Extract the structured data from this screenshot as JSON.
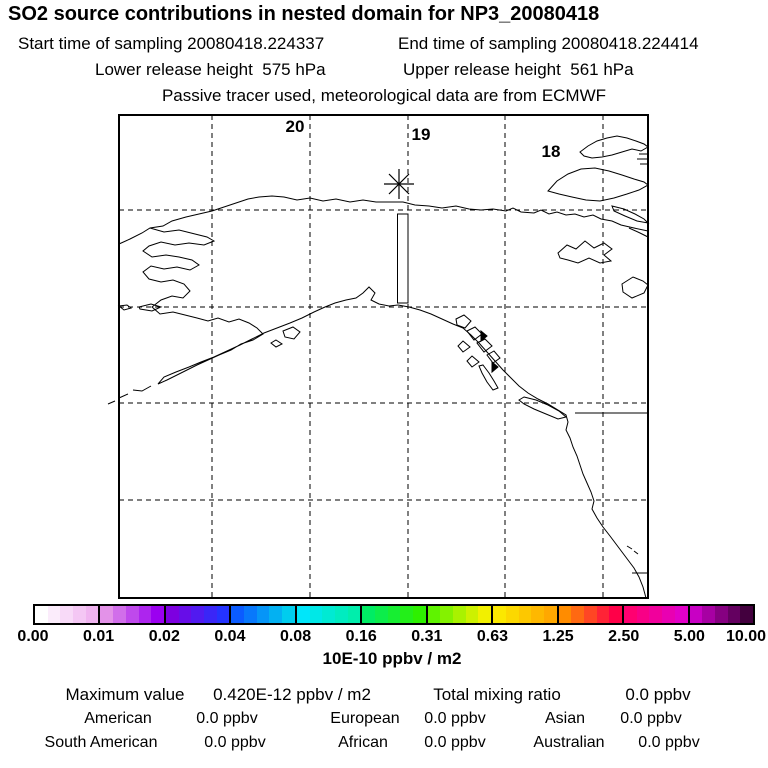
{
  "header": {
    "title": "SO2 source contributions in nested domain for NP3_20080418",
    "start_time": "Start time of sampling 20080418.224337",
    "end_time": "End time of sampling 20080418.224414",
    "lower_release": "Lower release height  575 hPa",
    "upper_release": "Upper release height  561 hPa",
    "tracer_note": "Passive tracer used, meteorological data are from ECMWF"
  },
  "map": {
    "day_labels": [
      "20",
      "19",
      "18"
    ]
  },
  "colorbar": {
    "ticks": [
      "0.00",
      "0.01",
      "0.02",
      "0.04",
      "0.08",
      "0.16",
      "0.31",
      "0.63",
      "1.25",
      "2.50",
      "5.00",
      "10.00"
    ],
    "units_label": "10E-10 ppbv / m2",
    "segments": [
      {
        "from": "#ffffff",
        "to": "#f0b4f0"
      },
      {
        "from": "#e392e8",
        "to": "#9b00f0"
      },
      {
        "from": "#7d00e0",
        "to": "#2433ff"
      },
      {
        "from": "#0b5cff",
        "to": "#00cdee"
      },
      {
        "from": "#00e6fa",
        "to": "#00eeac"
      },
      {
        "from": "#00ec64",
        "to": "#2ef000"
      },
      {
        "from": "#5ff300",
        "to": "#f2f000"
      },
      {
        "from": "#fbe800",
        "to": "#ffa800"
      },
      {
        "from": "#ff8c00",
        "to": "#ff0048"
      },
      {
        "from": "#ff0070",
        "to": "#e200c8"
      },
      {
        "from": "#c800c4",
        "to": "#43003e"
      }
    ]
  },
  "stats": {
    "max_label": "Maximum value",
    "max_value": "0.420E-12 ppbv / m2",
    "total_label": "Total mixing ratio",
    "total_value": "0.0 ppbv",
    "contributions": [
      {
        "name": "American",
        "value": "0.0 ppbv"
      },
      {
        "name": "European",
        "value": "0.0 ppbv"
      },
      {
        "name": "Asian",
        "value": "0.0 ppbv"
      },
      {
        "name": "South American",
        "value": "0.0 ppbv"
      },
      {
        "name": "African",
        "value": "0.0 ppbv"
      },
      {
        "name": "Australian",
        "value": "0.0 ppbv"
      }
    ]
  },
  "chart_data": {
    "type": "heatmap",
    "title": "SO2 source contributions in nested domain for NP3_20080418",
    "subtitle_lines": [
      "Start time of sampling 20080418.224337    End time of sampling 20080418.224414",
      "Lower release height  575 hPa    Upper release height  561 hPa",
      "Passive tracer used, meteorological data are from ECMWF"
    ],
    "colorbar": {
      "tick_values": [
        0.0,
        0.01,
        0.02,
        0.04,
        0.08,
        0.16,
        0.31,
        0.63,
        1.25,
        2.5,
        5.0,
        10.0
      ],
      "units": "10E-10 ppbv / m2",
      "scale": "logarithmic (doubling bins)"
    },
    "maximum_value": "0.420E-12 ppbv / m2",
    "total_mixing_ratio": "0.0 ppbv",
    "source_contributions": [
      {
        "region": "American",
        "value": "0.0 ppbv"
      },
      {
        "region": "European",
        "value": "0.0 ppbv"
      },
      {
        "region": "Asian",
        "value": "0.0 ppbv"
      },
      {
        "region": "South American",
        "value": "0.0 ppbv"
      },
      {
        "region": "African",
        "value": "0.0 ppbv"
      },
      {
        "region": "Australian",
        "value": "0.0 ppbv"
      }
    ],
    "map_overlay": {
      "day_labels": [
        "20",
        "19",
        "18"
      ],
      "grid": "dashed lat/lon gridlines, 5 meridians x 4 parallels visible",
      "release_marker": "asterisk with thin vertical release column box",
      "field_note": "no colored concentration cells visible (all values below lowest bin)"
    }
  }
}
